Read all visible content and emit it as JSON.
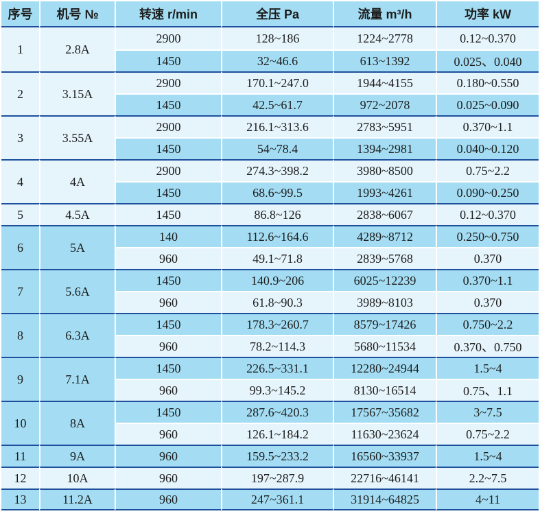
{
  "colors": {
    "header_bg": "#a4ddf3",
    "row_blue": "#a4ddf3",
    "row_light": "#e6f4fb",
    "divider_dark": "#1d4f9c",
    "divider_light": "#ffffff",
    "text": "#1c1c1c",
    "page_bg": "#ffffff"
  },
  "table": {
    "columns": [
      {
        "key": "index",
        "label": "序号"
      },
      {
        "key": "model",
        "label": "机号 №"
      },
      {
        "key": "speed",
        "label": "转速 r/min"
      },
      {
        "key": "pressure",
        "label": "全压 Pa"
      },
      {
        "key": "flow",
        "label": "流量 m³/h"
      },
      {
        "key": "power",
        "label": "功率 kW"
      }
    ],
    "groups": [
      {
        "index": "1",
        "model": "2.8A",
        "rows": [
          {
            "speed": "2900",
            "pressure": "128~186",
            "flow": "1224~2778",
            "power": "0.12~0.370"
          },
          {
            "speed": "1450",
            "pressure": "32~46.6",
            "flow": "613~1392",
            "power": "0.025、0.040"
          }
        ]
      },
      {
        "index": "2",
        "model": "3.15A",
        "rows": [
          {
            "speed": "2900",
            "pressure": "170.1~247.0",
            "flow": "1944~4155",
            "power": "0.180~0.550"
          },
          {
            "speed": "1450",
            "pressure": "42.5~61.7",
            "flow": "972~2078",
            "power": "0.025~0.090"
          }
        ]
      },
      {
        "index": "3",
        "model": "3.55A",
        "rows": [
          {
            "speed": "2900",
            "pressure": "216.1~313.6",
            "flow": "2783~5951",
            "power": "0.370~1.1"
          },
          {
            "speed": "1450",
            "pressure": "54~78.4",
            "flow": "1394~2981",
            "power": "0.040~0.120"
          }
        ]
      },
      {
        "index": "4",
        "model": "4A",
        "rows": [
          {
            "speed": "2900",
            "pressure": "274.3~398.2",
            "flow": "3980~8500",
            "power": "0.75~2.2"
          },
          {
            "speed": "1450",
            "pressure": "68.6~99.5",
            "flow": "1993~4261",
            "power": "0.090~0.250"
          }
        ]
      },
      {
        "index": "5",
        "model": "4.5A",
        "rows": [
          {
            "speed": "1450",
            "pressure": "86.8~126",
            "flow": "2838~6067",
            "power": "0.12~0.370"
          }
        ]
      },
      {
        "index": "6",
        "model": "5A",
        "rows": [
          {
            "speed": "140",
            "pressure": "112.6~164.6",
            "flow": "4289~8712",
            "power": "0.250~0.750"
          },
          {
            "speed": "960",
            "pressure": "49.1~71.8",
            "flow": "2839~5768",
            "power": "0.370"
          }
        ]
      },
      {
        "index": "7",
        "model": "5.6A",
        "rows": [
          {
            "speed": "1450",
            "pressure": "140.9~206",
            "flow": "6025~12239",
            "power": "0.370~1.1"
          },
          {
            "speed": "960",
            "pressure": "61.8~90.3",
            "flow": "3989~8103",
            "power": "0.370"
          }
        ]
      },
      {
        "index": "8",
        "model": "6.3A",
        "rows": [
          {
            "speed": "1450",
            "pressure": "178.3~260.7",
            "flow": "8579~17426",
            "power": "0.750~2.2"
          },
          {
            "speed": "960",
            "pressure": "78.2~114.3",
            "flow": "5680~11534",
            "power": "0.370、0.750"
          }
        ]
      },
      {
        "index": "9",
        "model": "7.1A",
        "rows": [
          {
            "speed": "1450",
            "pressure": "226.5~331.1",
            "flow": "12280~24944",
            "power": "1.5~4"
          },
          {
            "speed": "960",
            "pressure": "99.3~145.2",
            "flow": "8130~16514",
            "power": "0.75、1.1"
          }
        ]
      },
      {
        "index": "10",
        "model": "8A",
        "rows": [
          {
            "speed": "1450",
            "pressure": "287.6~420.3",
            "flow": "17567~35682",
            "power": "3~7.5"
          },
          {
            "speed": "960",
            "pressure": "126.1~184.2",
            "flow": "11630~23624",
            "power": "0.75~2.2"
          }
        ]
      },
      {
        "index": "11",
        "model": "9A",
        "rows": [
          {
            "speed": "960",
            "pressure": "159.5~233.2",
            "flow": "16560~33937",
            "power": "1.5~4"
          }
        ]
      },
      {
        "index": "12",
        "model": "10A",
        "rows": [
          {
            "speed": "960",
            "pressure": "197~287.9",
            "flow": "22716~46141",
            "power": "2.2~7.5"
          }
        ]
      },
      {
        "index": "13",
        "model": "11.2A",
        "rows": [
          {
            "speed": "960",
            "pressure": "247~361.1",
            "flow": "31914~64825",
            "power": "4~11"
          }
        ]
      }
    ]
  }
}
